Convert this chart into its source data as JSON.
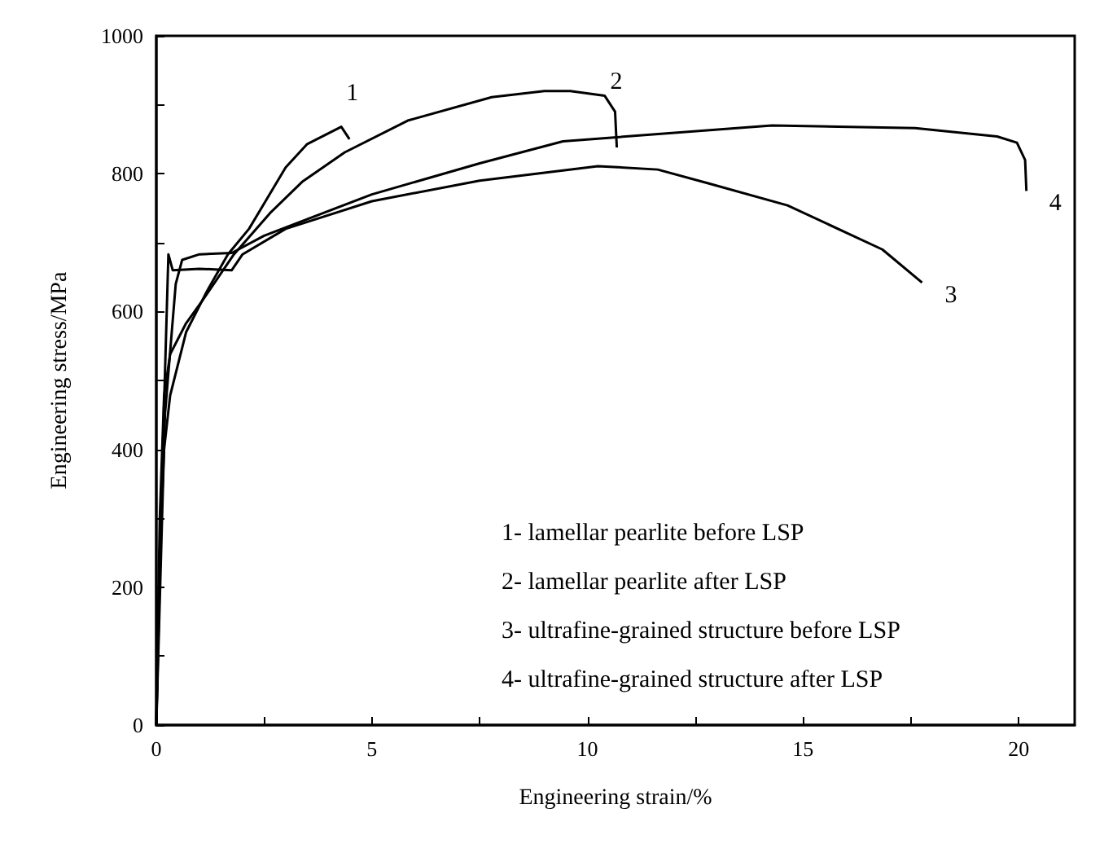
{
  "chart_data": {
    "type": "line",
    "xlabel": "Engineering strain/%",
    "ylabel": "Engineering stress/MPa",
    "xlim": [
      0,
      21.3
    ],
    "ylim": [
      0,
      1000
    ],
    "xticks": [
      0,
      {
        "value": 2.5,
        "label": null
      },
      5,
      {
        "value": 7.5,
        "label": null
      },
      10,
      {
        "value": 12.5,
        "label": null
      },
      15,
      {
        "value": 17.5,
        "label": null
      },
      20
    ],
    "yticks": [
      0,
      {
        "value": 100,
        "label": null
      },
      200,
      {
        "value": 300,
        "label": null
      },
      400,
      {
        "value": 500,
        "label": null
      },
      600,
      {
        "value": 700,
        "label": null
      },
      800,
      {
        "value": 900,
        "label": null
      },
      1000
    ],
    "grid": false,
    "marker": "none",
    "line_style": "solid",
    "series": [
      {
        "name": "1",
        "color": "#000000",
        "x": [
          0,
          0.08,
          0.18,
          0.32,
          0.69,
          1.17,
          1.66,
          2.15,
          3.0,
          3.5,
          4.29,
          4.48
        ],
        "values": [
          0,
          250,
          400,
          478,
          570,
          629,
          683,
          720,
          809,
          843,
          868,
          850
        ]
      },
      {
        "name": "2",
        "color": "#000000",
        "x": [
          0,
          0.08,
          0.18,
          0.32,
          0.69,
          1.06,
          1.8,
          2.64,
          3.38,
          4.37,
          5.83,
          7.78,
          9.0,
          9.6,
          10.4,
          10.64,
          10.68
        ],
        "values": [
          0,
          300,
          478,
          538,
          583,
          615,
          683,
          743,
          788,
          831,
          877,
          911,
          920,
          920,
          913,
          890,
          838
        ]
      },
      {
        "name": "3",
        "color": "#000000",
        "x": [
          0,
          0.15,
          0.28,
          0.38,
          1.0,
          1.75,
          2.0,
          3.0,
          5.0,
          7.5,
          10.24,
          11.63,
          12.8,
          14.64,
          16.84,
          17.76
        ],
        "values": [
          0,
          400,
          683,
          660,
          662,
          660,
          683,
          720,
          760,
          790,
          811,
          806,
          786,
          754,
          690,
          642
        ]
      },
      {
        "name": "4",
        "color": "#000000",
        "x": [
          0,
          0.2,
          0.45,
          0.6,
          1.0,
          1.75,
          2.5,
          5.0,
          7.5,
          9.43,
          14.28,
          17.6,
          19.5,
          19.96,
          20.15,
          20.18
        ],
        "values": [
          0,
          450,
          640,
          675,
          683,
          685,
          710,
          770,
          815,
          847,
          870,
          866,
          854,
          845,
          820,
          775
        ]
      }
    ],
    "annotations": [
      "1- lamellar pearlite before LSP",
      "2- lamellar pearlite after LSP",
      "3- ultrafine-grained structure before LSP",
      "4- ultrafine-grained structure after LSP"
    ]
  }
}
